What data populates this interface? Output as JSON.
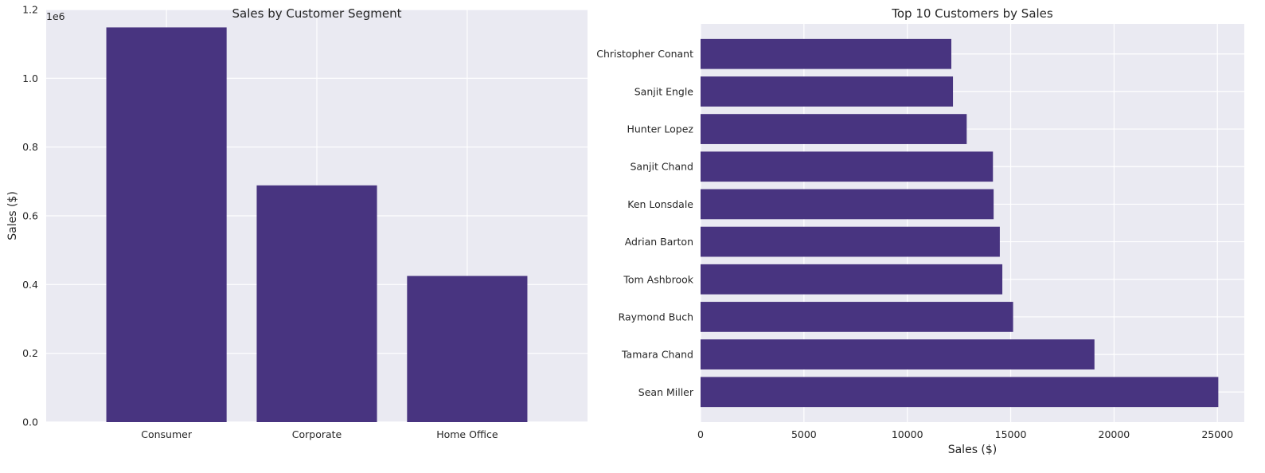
{
  "colors": {
    "bar": "#483480",
    "axes_bg": "#eaeaf2",
    "grid": "#ffffff",
    "text": "#262626"
  },
  "chart_data": [
    {
      "type": "bar",
      "title": "Sales by Customer Segment",
      "xlabel": "",
      "ylabel": "Sales ($)",
      "offset_label": "1e6",
      "categories": [
        "Consumer",
        "Corporate",
        "Home Office"
      ],
      "values": [
        1148061,
        688494,
        424982
      ],
      "ylim": [
        0,
        1.2
      ],
      "yticks": [
        0.0,
        0.2,
        0.4,
        0.6,
        0.8,
        1.0,
        1.2
      ],
      "ytick_labels": [
        "0.0",
        "0.2",
        "0.4",
        "0.6",
        "0.8",
        "1.0",
        "1.2"
      ],
      "grid": true
    },
    {
      "type": "bar",
      "orientation": "horizontal",
      "title": "Top 10 Customers by Sales",
      "xlabel": "Sales ($)",
      "ylabel": "",
      "categories": [
        "Sean Miller",
        "Tamara Chand",
        "Raymond Buch",
        "Tom Ashbrook",
        "Adrian Barton",
        "Ken Lonsdale",
        "Sanjit Chand",
        "Hunter Lopez",
        "Sanjit Engle",
        "Christopher Conant"
      ],
      "values": [
        25043,
        19052,
        15117,
        14596,
        14474,
        14175,
        14142,
        12873,
        12209,
        12129
      ],
      "xlim": [
        0,
        26300
      ],
      "xticks": [
        0,
        5000,
        10000,
        15000,
        20000,
        25000
      ],
      "xtick_labels": [
        "0",
        "5000",
        "10000",
        "15000",
        "20000",
        "25000"
      ],
      "grid": true
    }
  ]
}
